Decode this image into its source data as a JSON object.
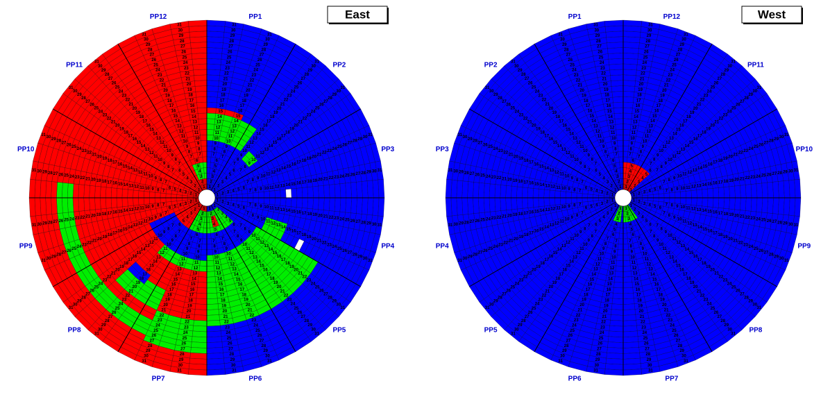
{
  "maps": [
    {
      "title": "East",
      "sector_labels": [
        "PP1",
        "PP2",
        "PP3",
        "PP4",
        "PP5",
        "PP6",
        "PP7",
        "PP8",
        "PP9",
        "PP10",
        "PP11",
        "PP12"
      ],
      "rings": [
        1,
        2,
        3,
        4,
        5,
        6,
        7,
        8,
        9,
        10,
        11,
        12,
        13,
        14,
        15,
        16,
        17,
        18,
        19,
        20,
        21,
        22,
        23,
        24,
        25,
        26,
        27,
        28,
        29,
        30,
        31
      ],
      "regions": [
        {
          "color": "#0000ff",
          "subsectors": [
            0,
            29
          ],
          "rings": [
            1,
            31
          ]
        },
        {
          "color": "#ff0000",
          "subsectors": [
            30,
            59
          ],
          "rings": [
            1,
            31
          ]
        },
        {
          "color": "#00ee00",
          "subsectors": [
            20,
            29
          ],
          "rings": [
            10,
            22
          ]
        },
        {
          "color": "#00ee00",
          "subsectors": [
            18,
            19
          ],
          "rings": [
            11,
            14
          ]
        },
        {
          "color": "#00ee00",
          "subsectors": [
            0,
            5
          ],
          "rings": [
            10,
            14
          ]
        },
        {
          "color": "#ff0000",
          "subsectors": [
            0,
            3
          ],
          "rings": [
            15,
            15
          ]
        },
        {
          "color": "#00ee00",
          "subsectors": [
            7,
            8
          ],
          "rings": [
            9,
            10
          ]
        },
        {
          "color": "#00ee00",
          "subsectors": [
            22,
            34
          ],
          "rings": [
            2,
            5
          ]
        },
        {
          "color": "#ff0000",
          "subsectors": [
            26,
            27
          ],
          "rings": [
            3,
            4
          ]
        },
        {
          "color": "#0000ff",
          "subsectors": [
            30,
            40
          ],
          "rings": [
            6,
            10
          ]
        },
        {
          "color": "#00ee00",
          "subsectors": [
            30,
            36
          ],
          "rings": [
            11,
            12
          ]
        },
        {
          "color": "#00ee00",
          "subsectors": [
            30,
            33
          ],
          "rings": [
            22,
            27
          ]
        },
        {
          "color": "#00ee00",
          "subsectors": [
            34,
            45
          ],
          "rings": [
            24,
            26
          ]
        },
        {
          "color": "#00ee00",
          "subsectors": [
            34,
            37
          ],
          "rings": [
            18,
            21
          ]
        },
        {
          "color": "#0000ff",
          "subsectors": [
            36,
            37
          ],
          "rings": [
            17,
            18
          ]
        },
        {
          "color": "#00ee00",
          "subsectors": [
            56,
            59
          ],
          "rings": [
            3,
            5
          ]
        },
        {
          "color": "#ffffff",
          "subsectors": [
            14,
            14
          ],
          "rings": [
            14,
            14
          ]
        },
        {
          "color": "#ffffff",
          "subsectors": [
            19,
            19
          ],
          "rings": [
            18,
            18
          ]
        }
      ]
    },
    {
      "title": "West",
      "sector_labels": [
        "PP12",
        "PP11",
        "PP10",
        "PP9",
        "PP8",
        "PP7",
        "PP6",
        "PP5",
        "PP4",
        "PP3",
        "PP2",
        "PP1"
      ],
      "rings": [
        1,
        2,
        3,
        4,
        5,
        6,
        7,
        8,
        9,
        10,
        11,
        12,
        13,
        14,
        15,
        16,
        17,
        18,
        19,
        20,
        21,
        22,
        23,
        24,
        25,
        26,
        27,
        28,
        29,
        30,
        31
      ],
      "regions": [
        {
          "color": "#0000ff",
          "subsectors": [
            0,
            59
          ],
          "rings": [
            1,
            31
          ]
        },
        {
          "color": "#ff0000",
          "subsectors": [
            0,
            7
          ],
          "rings": [
            1,
            5
          ]
        },
        {
          "color": "#00ee00",
          "subsectors": [
            24,
            29
          ],
          "rings": [
            1,
            3
          ]
        },
        {
          "color": "#00ee00",
          "subsectors": [
            31,
            33
          ],
          "rings": [
            1,
            3
          ]
        }
      ]
    }
  ]
}
